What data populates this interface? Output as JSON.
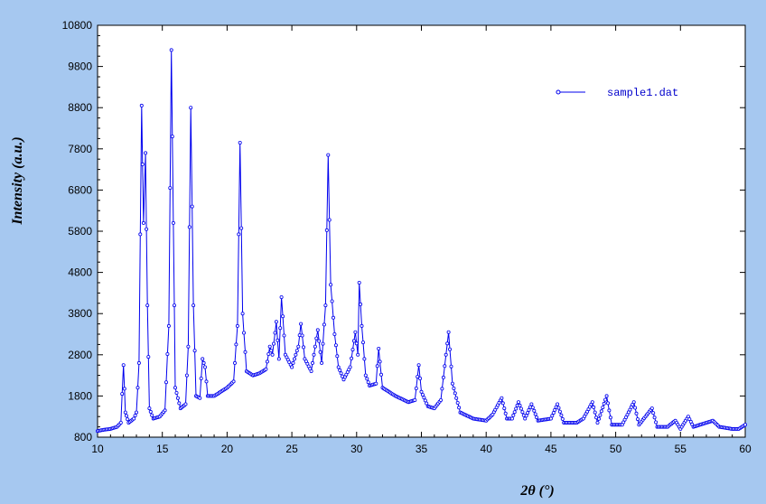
{
  "chart_data": {
    "type": "line",
    "xlabel": "2θ (°)",
    "ylabel": "Intensity (a.u.)",
    "xlim": [
      10,
      60
    ],
    "ylim": [
      800,
      10800
    ],
    "xticks": [
      10,
      15,
      20,
      25,
      30,
      35,
      40,
      45,
      50,
      55,
      60
    ],
    "yticks": [
      800,
      1800,
      2800,
      3800,
      4800,
      5800,
      6800,
      7800,
      8800,
      9800,
      10800
    ],
    "grid": false,
    "legend": "top-right",
    "colors": {
      "series": "#0000ee",
      "background": "#a6c8f0",
      "plot_area": "#ffffff"
    },
    "series": [
      {
        "name": "sample1.dat",
        "points": [
          [
            10.0,
            950
          ],
          [
            10.5,
            980
          ],
          [
            11.0,
            1000
          ],
          [
            11.5,
            1050
          ],
          [
            11.8,
            1150
          ],
          [
            12.0,
            2550
          ],
          [
            12.15,
            1400
          ],
          [
            12.4,
            1150
          ],
          [
            12.8,
            1250
          ],
          [
            13.0,
            1400
          ],
          [
            13.2,
            2600
          ],
          [
            13.4,
            8850
          ],
          [
            13.55,
            6000
          ],
          [
            13.7,
            7700
          ],
          [
            13.85,
            4000
          ],
          [
            14.0,
            1500
          ],
          [
            14.3,
            1250
          ],
          [
            14.8,
            1300
          ],
          [
            15.2,
            1450
          ],
          [
            15.5,
            3500
          ],
          [
            15.7,
            10200
          ],
          [
            15.85,
            6000
          ],
          [
            16.0,
            2000
          ],
          [
            16.4,
            1500
          ],
          [
            16.8,
            1600
          ],
          [
            17.0,
            3000
          ],
          [
            17.2,
            8800
          ],
          [
            17.4,
            4000
          ],
          [
            17.6,
            1800
          ],
          [
            17.9,
            1750
          ],
          [
            18.1,
            2700
          ],
          [
            18.3,
            2500
          ],
          [
            18.5,
            1800
          ],
          [
            19.0,
            1800
          ],
          [
            19.5,
            1900
          ],
          [
            20.0,
            2000
          ],
          [
            20.5,
            2150
          ],
          [
            20.8,
            3500
          ],
          [
            21.0,
            7950
          ],
          [
            21.2,
            3800
          ],
          [
            21.5,
            2400
          ],
          [
            22.0,
            2300
          ],
          [
            22.5,
            2350
          ],
          [
            23.0,
            2450
          ],
          [
            23.3,
            3000
          ],
          [
            23.5,
            2800
          ],
          [
            23.8,
            3600
          ],
          [
            24.0,
            2700
          ],
          [
            24.2,
            4200
          ],
          [
            24.5,
            2800
          ],
          [
            25.0,
            2500
          ],
          [
            25.5,
            3000
          ],
          [
            25.7,
            3550
          ],
          [
            26.0,
            2700
          ],
          [
            26.5,
            2400
          ],
          [
            27.0,
            3400
          ],
          [
            27.3,
            2600
          ],
          [
            27.6,
            4000
          ],
          [
            27.8,
            7650
          ],
          [
            28.0,
            4500
          ],
          [
            28.3,
            3300
          ],
          [
            28.6,
            2500
          ],
          [
            29.0,
            2200
          ],
          [
            29.5,
            2500
          ],
          [
            29.9,
            3350
          ],
          [
            30.1,
            2800
          ],
          [
            30.2,
            4550
          ],
          [
            30.4,
            3500
          ],
          [
            30.7,
            2300
          ],
          [
            31.0,
            2050
          ],
          [
            31.5,
            2100
          ],
          [
            31.7,
            2950
          ],
          [
            32.0,
            2000
          ],
          [
            33.0,
            1800
          ],
          [
            34.0,
            1650
          ],
          [
            34.5,
            1700
          ],
          [
            34.8,
            2550
          ],
          [
            35.0,
            1900
          ],
          [
            35.5,
            1550
          ],
          [
            36.0,
            1500
          ],
          [
            36.5,
            1700
          ],
          [
            37.1,
            3350
          ],
          [
            37.4,
            2100
          ],
          [
            38.0,
            1400
          ],
          [
            39.0,
            1250
          ],
          [
            40.0,
            1200
          ],
          [
            40.5,
            1350
          ],
          [
            41.2,
            1750
          ],
          [
            41.6,
            1250
          ],
          [
            42.0,
            1250
          ],
          [
            42.5,
            1650
          ],
          [
            43.0,
            1250
          ],
          [
            43.5,
            1600
          ],
          [
            44.0,
            1200
          ],
          [
            45.0,
            1250
          ],
          [
            45.5,
            1600
          ],
          [
            46.0,
            1150
          ],
          [
            47.0,
            1150
          ],
          [
            47.5,
            1250
          ],
          [
            48.2,
            1650
          ],
          [
            48.6,
            1150
          ],
          [
            49.3,
            1800
          ],
          [
            49.7,
            1100
          ],
          [
            50.5,
            1100
          ],
          [
            51.4,
            1650
          ],
          [
            51.8,
            1100
          ],
          [
            52.8,
            1500
          ],
          [
            53.2,
            1050
          ],
          [
            54.0,
            1050
          ],
          [
            54.6,
            1200
          ],
          [
            55.0,
            1000
          ],
          [
            55.6,
            1300
          ],
          [
            56.0,
            1050
          ],
          [
            57.0,
            1150
          ],
          [
            57.5,
            1200
          ],
          [
            58.0,
            1050
          ],
          [
            59.0,
            1000
          ],
          [
            59.5,
            1000
          ],
          [
            60.0,
            1100
          ]
        ]
      }
    ]
  }
}
